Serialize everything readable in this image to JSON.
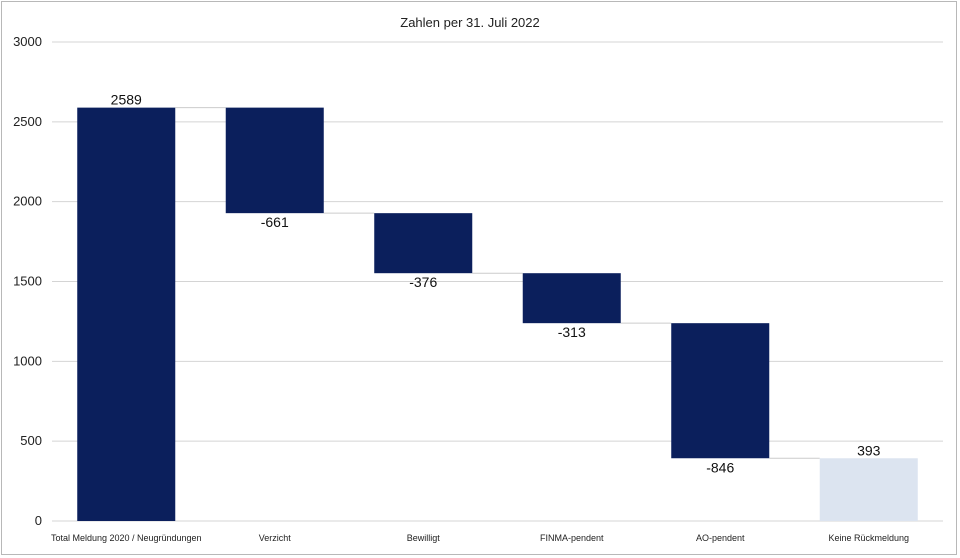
{
  "chart_data": {
    "type": "bar",
    "subtype": "waterfall",
    "title": "Zahlen per 31. Juli 2022",
    "categories": [
      "Total Meldung 2020 / Neugründungen",
      "Verzicht",
      "Bewilligt",
      "FINMA-pendent",
      "AO-pendent",
      "Keine Rückmeldung"
    ],
    "values": [
      2589,
      -661,
      -376,
      -313,
      -846,
      393
    ],
    "data_labels": [
      "2589",
      "-661",
      "-376",
      "-313",
      "-846",
      "393"
    ],
    "bar_kinds": [
      "total",
      "delta",
      "delta",
      "delta",
      "delta",
      "total"
    ],
    "ylim": [
      0,
      3000
    ],
    "yticks": [
      0,
      500,
      1000,
      1500,
      2000,
      2500,
      3000
    ],
    "ytick_labels": [
      "0",
      "500",
      "1000",
      "1500",
      "2000",
      "2500",
      "3000"
    ],
    "grid": true,
    "legend": "none",
    "colors": {
      "bar": "#0b1f5c",
      "last_total": "#dce4f0",
      "grid": "#d4d4d4",
      "connector": "#cccccc"
    }
  }
}
